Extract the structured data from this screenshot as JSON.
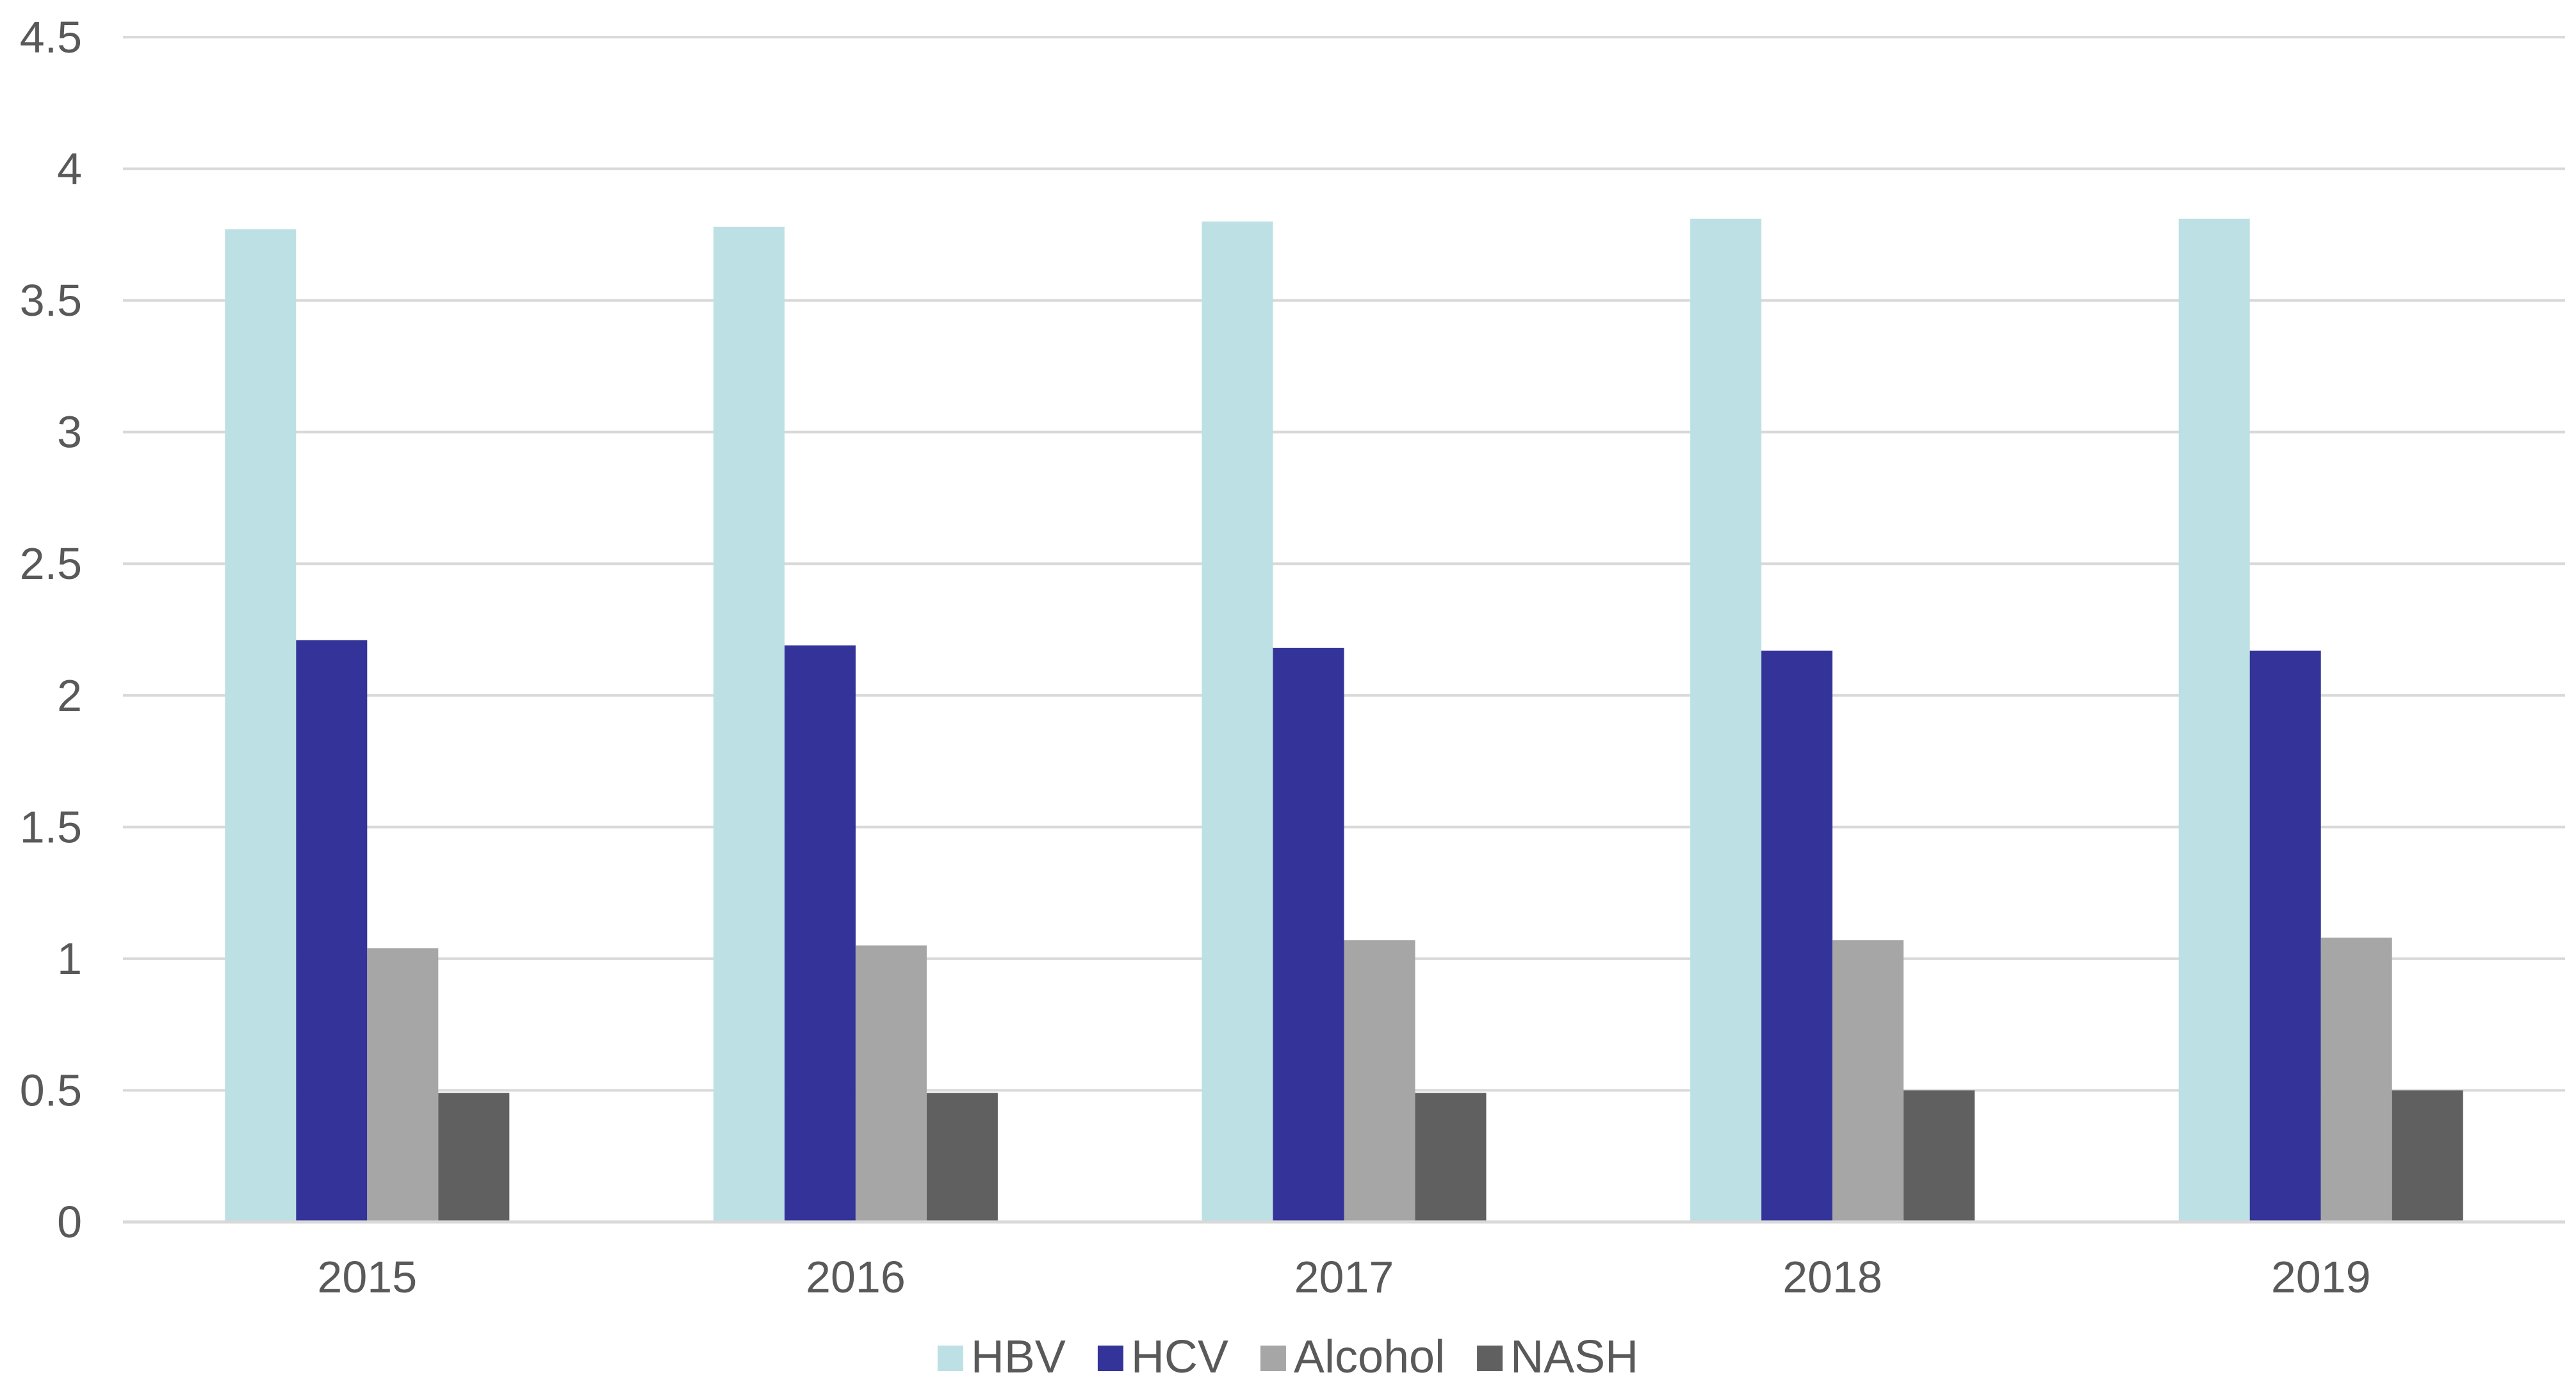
{
  "chart_data": {
    "type": "bar",
    "title": "",
    "xlabel": "",
    "ylabel": "",
    "categories": [
      "2015",
      "2016",
      "2017",
      "2018",
      "2019"
    ],
    "ylim": [
      0,
      4.5
    ],
    "yticks": [
      0,
      0.5,
      1,
      1.5,
      2,
      2.5,
      3,
      3.5,
      4,
      4.5
    ],
    "ytick_labels": [
      "0",
      "0.5",
      "1",
      "1.5",
      "2",
      "2.5",
      "3",
      "3.5",
      "4",
      "4.5"
    ],
    "grid": true,
    "legend_position": "bottom",
    "series": [
      {
        "name": "HBV",
        "color": "#bce0e3",
        "values": [
          3.77,
          3.78,
          3.8,
          3.81,
          3.81
        ]
      },
      {
        "name": "HCV",
        "color": "#333399",
        "values": [
          2.21,
          2.19,
          2.18,
          2.17,
          2.17
        ]
      },
      {
        "name": "Alcohol",
        "color": "#a6a6a6",
        "values": [
          1.04,
          1.05,
          1.07,
          1.07,
          1.08
        ]
      },
      {
        "name": "NASH",
        "color": "#606060",
        "values": [
          0.49,
          0.49,
          0.49,
          0.5,
          0.5
        ]
      }
    ]
  }
}
